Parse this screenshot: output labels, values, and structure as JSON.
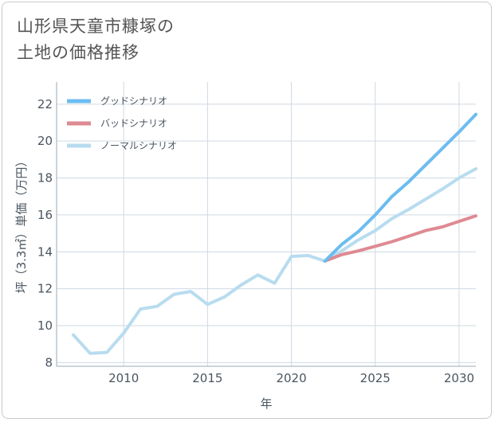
{
  "title_lines": [
    "山形県天童市糠塚の",
    "土地の価格推移"
  ],
  "chart_data": {
    "type": "line",
    "xlabel": "年",
    "ylabel": "坪（3.3㎡）単価（万円）",
    "xlim": [
      2006,
      2031
    ],
    "ylim": [
      7.8,
      23.2
    ],
    "x_ticks": [
      2010,
      2015,
      2020,
      2025,
      2030
    ],
    "y_ticks": [
      8,
      10,
      12,
      14,
      16,
      18,
      20,
      22
    ],
    "grid": true,
    "legend_position": "top-left",
    "series": [
      {
        "name": "グッドシナリオ",
        "color": "#6cbcf0",
        "x": [
          2022,
          2023,
          2024,
          2025,
          2026,
          2027,
          2028,
          2029,
          2030,
          2031
        ],
        "y": [
          13.5,
          14.4,
          15.1,
          16.0,
          17.0,
          17.8,
          18.7,
          19.6,
          20.5,
          21.45
        ]
      },
      {
        "name": "バッドシナリオ",
        "color": "#de8a92",
        "x": [
          2022,
          2023,
          2024,
          2025,
          2026,
          2027,
          2028,
          2029,
          2030,
          2031
        ],
        "y": [
          13.5,
          13.85,
          14.05,
          14.3,
          14.55,
          14.85,
          15.15,
          15.35,
          15.65,
          15.95
        ]
      },
      {
        "name": "ノーマルシナリオ",
        "color": "#b8dcef",
        "x": [
          2007,
          2008,
          2009,
          2010,
          2011,
          2012,
          2013,
          2014,
          2015,
          2016,
          2017,
          2018,
          2019,
          2020,
          2021,
          2022,
          2023,
          2024,
          2025,
          2026,
          2027,
          2028,
          2029,
          2030,
          2031
        ],
        "y": [
          9.5,
          8.5,
          8.55,
          9.6,
          10.9,
          11.05,
          11.7,
          11.85,
          11.15,
          11.55,
          12.2,
          12.75,
          12.3,
          13.75,
          13.8,
          13.5,
          14.05,
          14.65,
          15.15,
          15.8,
          16.3,
          16.85,
          17.4,
          18.0,
          18.5
        ]
      }
    ]
  }
}
